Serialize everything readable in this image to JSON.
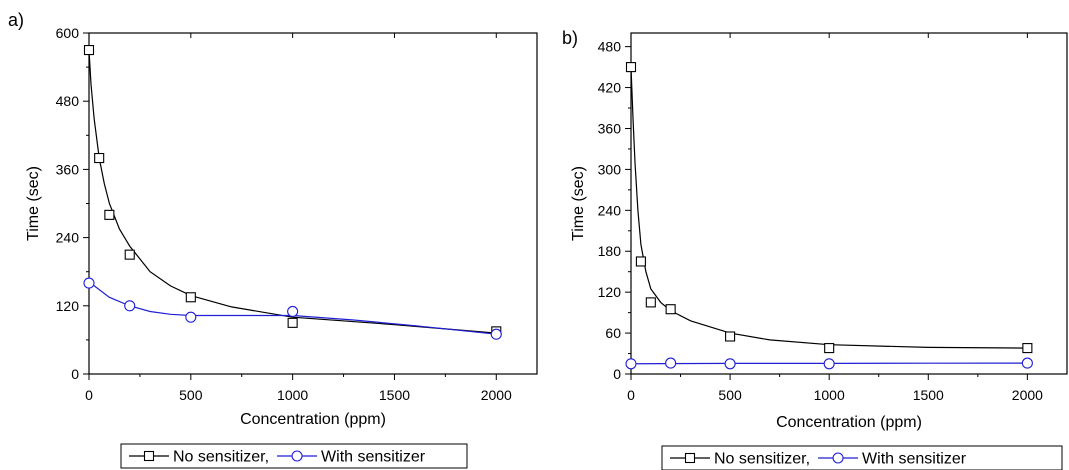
{
  "chart_data": [
    {
      "type": "scatter",
      "panel_label": "a)",
      "xlabel": "Concentration (ppm)",
      "ylabel": "Time (sec)",
      "xlim": [
        0,
        2200
      ],
      "ylim": [
        0,
        600
      ],
      "xticks": [
        0,
        500,
        1000,
        1500,
        2000
      ],
      "yticks": [
        0,
        120,
        240,
        360,
        480,
        600
      ],
      "grid": false,
      "legend_position": "bottom",
      "series": [
        {
          "name": "No sensitizer,",
          "marker": "square",
          "color": "#000000",
          "x": [
            0,
            50,
            100,
            200,
            500,
            1000,
            2000
          ],
          "y": [
            570,
            380,
            280,
            210,
            135,
            90,
            75
          ],
          "fit": [
            [
              0,
              570
            ],
            [
              10,
              510
            ],
            [
              25,
              450
            ],
            [
              50,
              380
            ],
            [
              75,
              335
            ],
            [
              100,
              300
            ],
            [
              150,
              255
            ],
            [
              200,
              225
            ],
            [
              300,
              180
            ],
            [
              400,
              155
            ],
            [
              500,
              138
            ],
            [
              700,
              118
            ],
            [
              1000,
              100
            ],
            [
              1500,
              87
            ],
            [
              2000,
              72
            ]
          ]
        },
        {
          "name": "With sensitizer",
          "marker": "circle",
          "color": "#1f1fd6",
          "x": [
            0,
            200,
            500,
            1000,
            2000
          ],
          "y": [
            160,
            120,
            100,
            110,
            70
          ],
          "fit": [
            [
              0,
              162
            ],
            [
              100,
              135
            ],
            [
              200,
              120
            ],
            [
              300,
              110
            ],
            [
              400,
              105
            ],
            [
              500,
              103
            ],
            [
              700,
              103
            ],
            [
              1000,
              103
            ],
            [
              1300,
              95
            ],
            [
              1600,
              85
            ],
            [
              2000,
              70
            ]
          ]
        }
      ]
    },
    {
      "type": "scatter",
      "panel_label": "b)",
      "xlabel": "Concentration (ppm)",
      "ylabel": "Time (sec)",
      "xlim": [
        0,
        2200
      ],
      "ylim": [
        0,
        500
      ],
      "xticks": [
        0,
        500,
        1000,
        1500,
        2000
      ],
      "yticks": [
        0,
        60,
        120,
        180,
        240,
        300,
        360,
        420,
        480
      ],
      "grid": false,
      "legend_position": "bottom",
      "series": [
        {
          "name": "No sensitizer,",
          "marker": "square",
          "color": "#000000",
          "x": [
            0,
            50,
            100,
            200,
            500,
            1000,
            2000
          ],
          "y": [
            450,
            165,
            105,
            95,
            55,
            38,
            38
          ],
          "fit": [
            [
              0,
              450
            ],
            [
              10,
              375
            ],
            [
              20,
              310
            ],
            [
              35,
              240
            ],
            [
              50,
              190
            ],
            [
              75,
              150
            ],
            [
              100,
              125
            ],
            [
              150,
              105
            ],
            [
              200,
              93
            ],
            [
              300,
              78
            ],
            [
              500,
              60
            ],
            [
              700,
              50
            ],
            [
              1000,
              43
            ],
            [
              1500,
              39
            ],
            [
              2000,
              38
            ]
          ]
        },
        {
          "name": "With sensitizer",
          "marker": "circle",
          "color": "#1f1fd6",
          "x": [
            0,
            200,
            500,
            1000,
            2000
          ],
          "y": [
            15,
            16,
            15,
            15,
            16
          ],
          "fit": [
            [
              0,
              15
            ],
            [
              500,
              15.5
            ],
            [
              1000,
              15.5
            ],
            [
              1500,
              15.8
            ],
            [
              2000,
              16
            ]
          ]
        }
      ]
    }
  ]
}
